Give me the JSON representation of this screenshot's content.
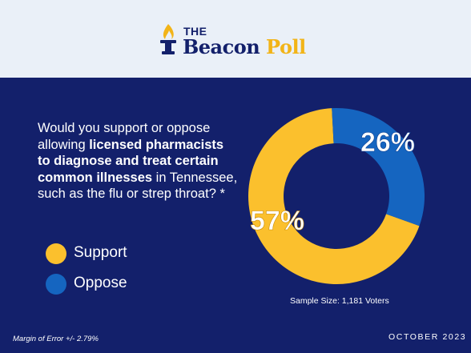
{
  "brand": {
    "the": "THE",
    "beacon": "Beacon",
    "poll": "Poll",
    "navy": "#13206b",
    "gold": "#f2b418"
  },
  "question": {
    "prefix": "Would you support or oppose allowing ",
    "emphasis": "licensed pharmacists to diagnose and treat certain common illnesses",
    "suffix": " in Tennessee, such as the flu or strep throat? *"
  },
  "chart_data": {
    "type": "pie",
    "style": "donut",
    "categories": [
      "Support",
      "Oppose"
    ],
    "values": [
      57,
      26
    ],
    "value_labels": [
      "57%",
      "26%"
    ],
    "colors": [
      "#fbc02d",
      "#1565c0"
    ],
    "legend_position": "left"
  },
  "legend": [
    {
      "label": "Support",
      "color": "#fbc02d"
    },
    {
      "label": "Oppose",
      "color": "#1565c0"
    }
  ],
  "footer": {
    "sample_size": "Sample Size: 1,181 Voters",
    "margin_of_error": "Margin of Error +/- 2.79%",
    "date": "OCTOBER 2023"
  }
}
